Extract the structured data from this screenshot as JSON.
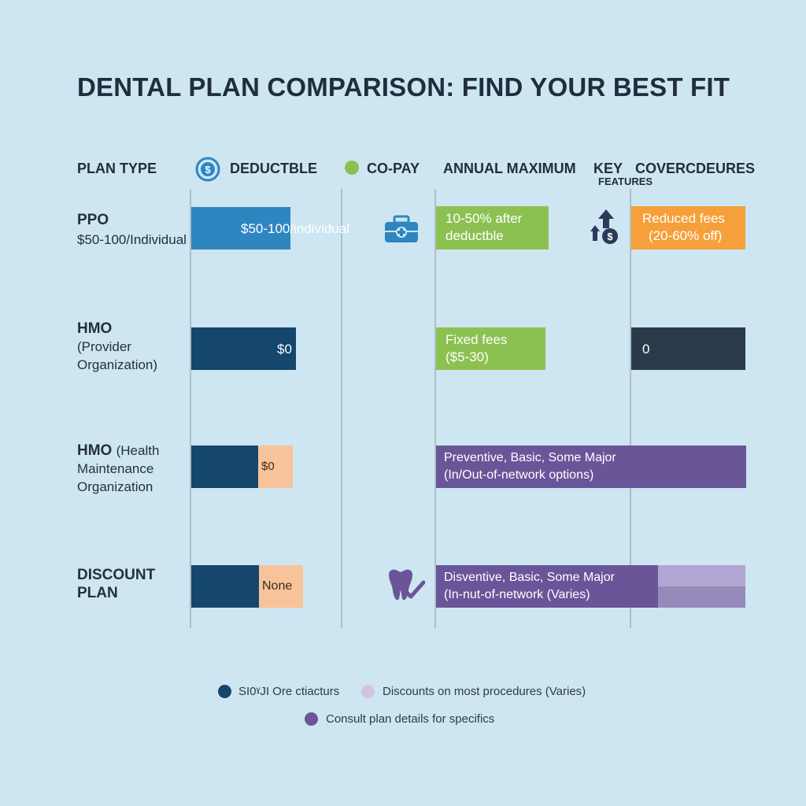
{
  "title": "DENTAL PLAN COMPARISON: FIND YOUR BEST FIT",
  "headers": {
    "plan_type": "PLAN TYPE",
    "deductible": "DEDUCTBLE",
    "copay": "CO-PAY",
    "annual_max": "ANNUAL MAXIMUM",
    "key": "KEY",
    "features": "FEATURES",
    "coverage": "COVERCDEURES"
  },
  "icons": {
    "deductible": "dollar-coin-icon",
    "copay": "green-dot-icon",
    "ppo_copay": "medical-kit-icon",
    "ppo_key": "cost-up-icon",
    "discount_key": "tooth-check-icon"
  },
  "colors": {
    "background": "#cde6f1",
    "blue": "#2e86c1",
    "navy": "#14466e",
    "peach": "#f8c39a",
    "green": "#8cc152",
    "orange": "#f5a03a",
    "charcoal": "#2b3a4a",
    "purple": "#6a5599",
    "lavender": "#a89cc8"
  },
  "chart_data": {
    "type": "table",
    "title": "DENTAL PLAN COMPARISON: FIND YOUR BEST FIT",
    "columns": [
      "PLAN TYPE",
      "DEDUCTBLE",
      "CO-PAY",
      "ANNUAL MAXIMUM",
      "KEY FEATURES",
      "COVERCDEURES"
    ],
    "rows": [
      {
        "name": "PPO",
        "sub": "$50-100/Individual",
        "deductible": "$50-100/individual",
        "annual_max": [
          "10-50% after",
          "deductble"
        ],
        "coverage": [
          "Reduced fees",
          "(20-60% off)"
        ]
      },
      {
        "name": "HMO",
        "sub": "(Provider Organization)",
        "deductible": "$0",
        "annual_max": [
          "Fixed fees",
          "($5-30)"
        ],
        "coverage": [
          "0"
        ]
      },
      {
        "name": "HMO",
        "sub": "(Health Maintenance Organization",
        "deductible": "$0",
        "span": [
          "Preventive, Basic, Some Major",
          "(In/Out-of-network options)"
        ]
      },
      {
        "name": "DISCOUNT PLAN",
        "deductible": "None",
        "span": [
          "Disventive, Basic, Some Major",
          "(In-nut-of-network (Varies)"
        ]
      }
    ],
    "legend": [
      {
        "label": "SI0ˠJI Ore ctiacturs",
        "color": "#14466e"
      },
      {
        "label": "Discounts on most procedures (Varies)",
        "color": "#d3c3e0"
      },
      {
        "label": "Consult plan details for specifics",
        "color": "#6a5599"
      }
    ]
  }
}
